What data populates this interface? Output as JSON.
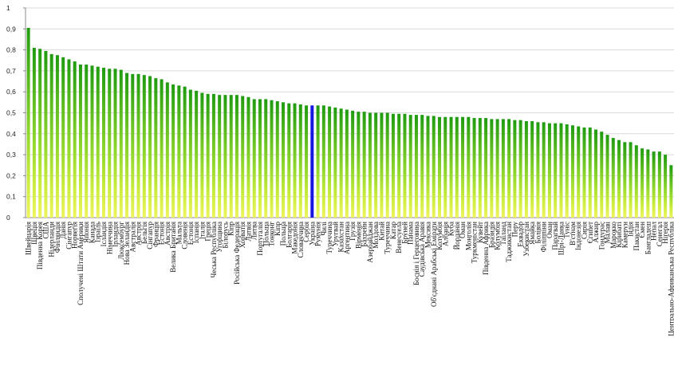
{
  "chart_data": {
    "type": "bar",
    "title": "",
    "xlabel": "",
    "ylabel": "",
    "ylim": [
      0,
      1
    ],
    "yticks": [
      "0",
      "0,1",
      "0,2",
      "0,3",
      "0,4",
      "0,5",
      "0,6",
      "0,7",
      "0,8",
      "0,9",
      "1"
    ],
    "grid": true,
    "highlight_color": "#1616e0",
    "gradient_colors": [
      "#1f9b10",
      "#bde83a",
      "#ecf25a"
    ],
    "categories": [
      "Швейцарія",
      "Швеція",
      "Південна Корея",
      "США",
      "Нідерланди",
      "Фінляндія",
      "Данія",
      "Сінгапур",
      "Норвегія",
      "Сполучені Штати Америки",
      "Японія",
      "Канада",
      "Ізраїль",
      "Ісландія",
      "Німеччина",
      "Ірландія",
      "Люксембург",
      "Нова Зеландія",
      "Австралія",
      "Австрія",
      "Бельгія",
      "Сінгапур",
      "Франція",
      "Естонія",
      "Австрія",
      "Велика Британія",
      "Мальта",
      "Словенія",
      "Естонія",
      "Іспанія",
      "Італія",
      "Греція",
      "Чеська Республіка",
      "Угорщина",
      "Білорусь",
      "Кіпр",
      "Російська Федерація",
      "Хорватія",
      "Латвія",
      "Литва",
      "Португалія",
      "Польща",
      "Тонконг",
      "Кіпр",
      "Польща",
      "Болгарія",
      "Македонія",
      "Словаччина",
      "Сербія",
      "Україна",
      "Румунія",
      "Чилі",
      "Туреччина",
      "Уругвай",
      "Казахстан",
      "Аргентина",
      "Грузія",
      "Вірменія",
      "Бахрейн",
      "Азербайджан",
      "Молдова",
      "Китай",
      "Туреччина",
      "Катар",
      "Венесуела",
      "Бруней",
      "Панама",
      "Боснія і Герцеговина",
      "Саудівська Аравія",
      "Мексика",
      "Об'єднані Арабські Емірати",
      "Колумбія",
      "Албанія",
      "Куба",
      "Йорданія",
      "Оман",
      "Монголія",
      "Туркменістан",
      "Кувейт",
      "Південна Африка",
      "Бразилія",
      "Колумбія",
      "Таїланд",
      "Таджикистан",
      "Перу",
      "Еквадор",
      "Узбекистан",
      "Ямайка",
      "Болівія",
      "Філіппіни",
      "Оман",
      "Парагвай",
      "Шрі-Ланка",
      "Туніс",
      "В'єтнам",
      "Індонезія",
      "Сирія",
      "Єгипет",
      "Алжир",
      "Гондурас",
      "Малаві",
      "Марокко",
      "Кірибаті",
      "Камерун",
      "Індія",
      "Пакистан",
      "Ємен",
      "Бангладеш",
      "Непал",
      "Сенегал",
      "Нігерія",
      "Центрально-Африканська Республіка"
    ],
    "values": [
      0.905,
      0.81,
      0.805,
      0.795,
      0.78,
      0.775,
      0.765,
      0.755,
      0.745,
      0.73,
      0.73,
      0.725,
      0.72,
      0.715,
      0.71,
      0.71,
      0.705,
      0.69,
      0.685,
      0.685,
      0.68,
      0.675,
      0.665,
      0.66,
      0.645,
      0.635,
      0.63,
      0.625,
      0.61,
      0.605,
      0.595,
      0.59,
      0.59,
      0.585,
      0.585,
      0.585,
      0.585,
      0.58,
      0.575,
      0.565,
      0.565,
      0.565,
      0.56,
      0.555,
      0.55,
      0.545,
      0.545,
      0.54,
      0.535,
      0.535,
      0.535,
      0.535,
      0.53,
      0.525,
      0.52,
      0.515,
      0.51,
      0.505,
      0.505,
      0.5,
      0.5,
      0.5,
      0.5,
      0.495,
      0.495,
      0.495,
      0.49,
      0.49,
      0.49,
      0.485,
      0.485,
      0.48,
      0.48,
      0.48,
      0.48,
      0.48,
      0.48,
      0.475,
      0.475,
      0.475,
      0.47,
      0.47,
      0.47,
      0.47,
      0.465,
      0.465,
      0.46,
      0.46,
      0.455,
      0.455,
      0.45,
      0.45,
      0.45,
      0.445,
      0.44,
      0.435,
      0.43,
      0.43,
      0.42,
      0.41,
      0.395,
      0.38,
      0.37,
      0.36,
      0.36,
      0.345,
      0.33,
      0.325,
      0.315,
      0.315,
      0.3,
      0.25
    ],
    "highlight_index": 49
  }
}
